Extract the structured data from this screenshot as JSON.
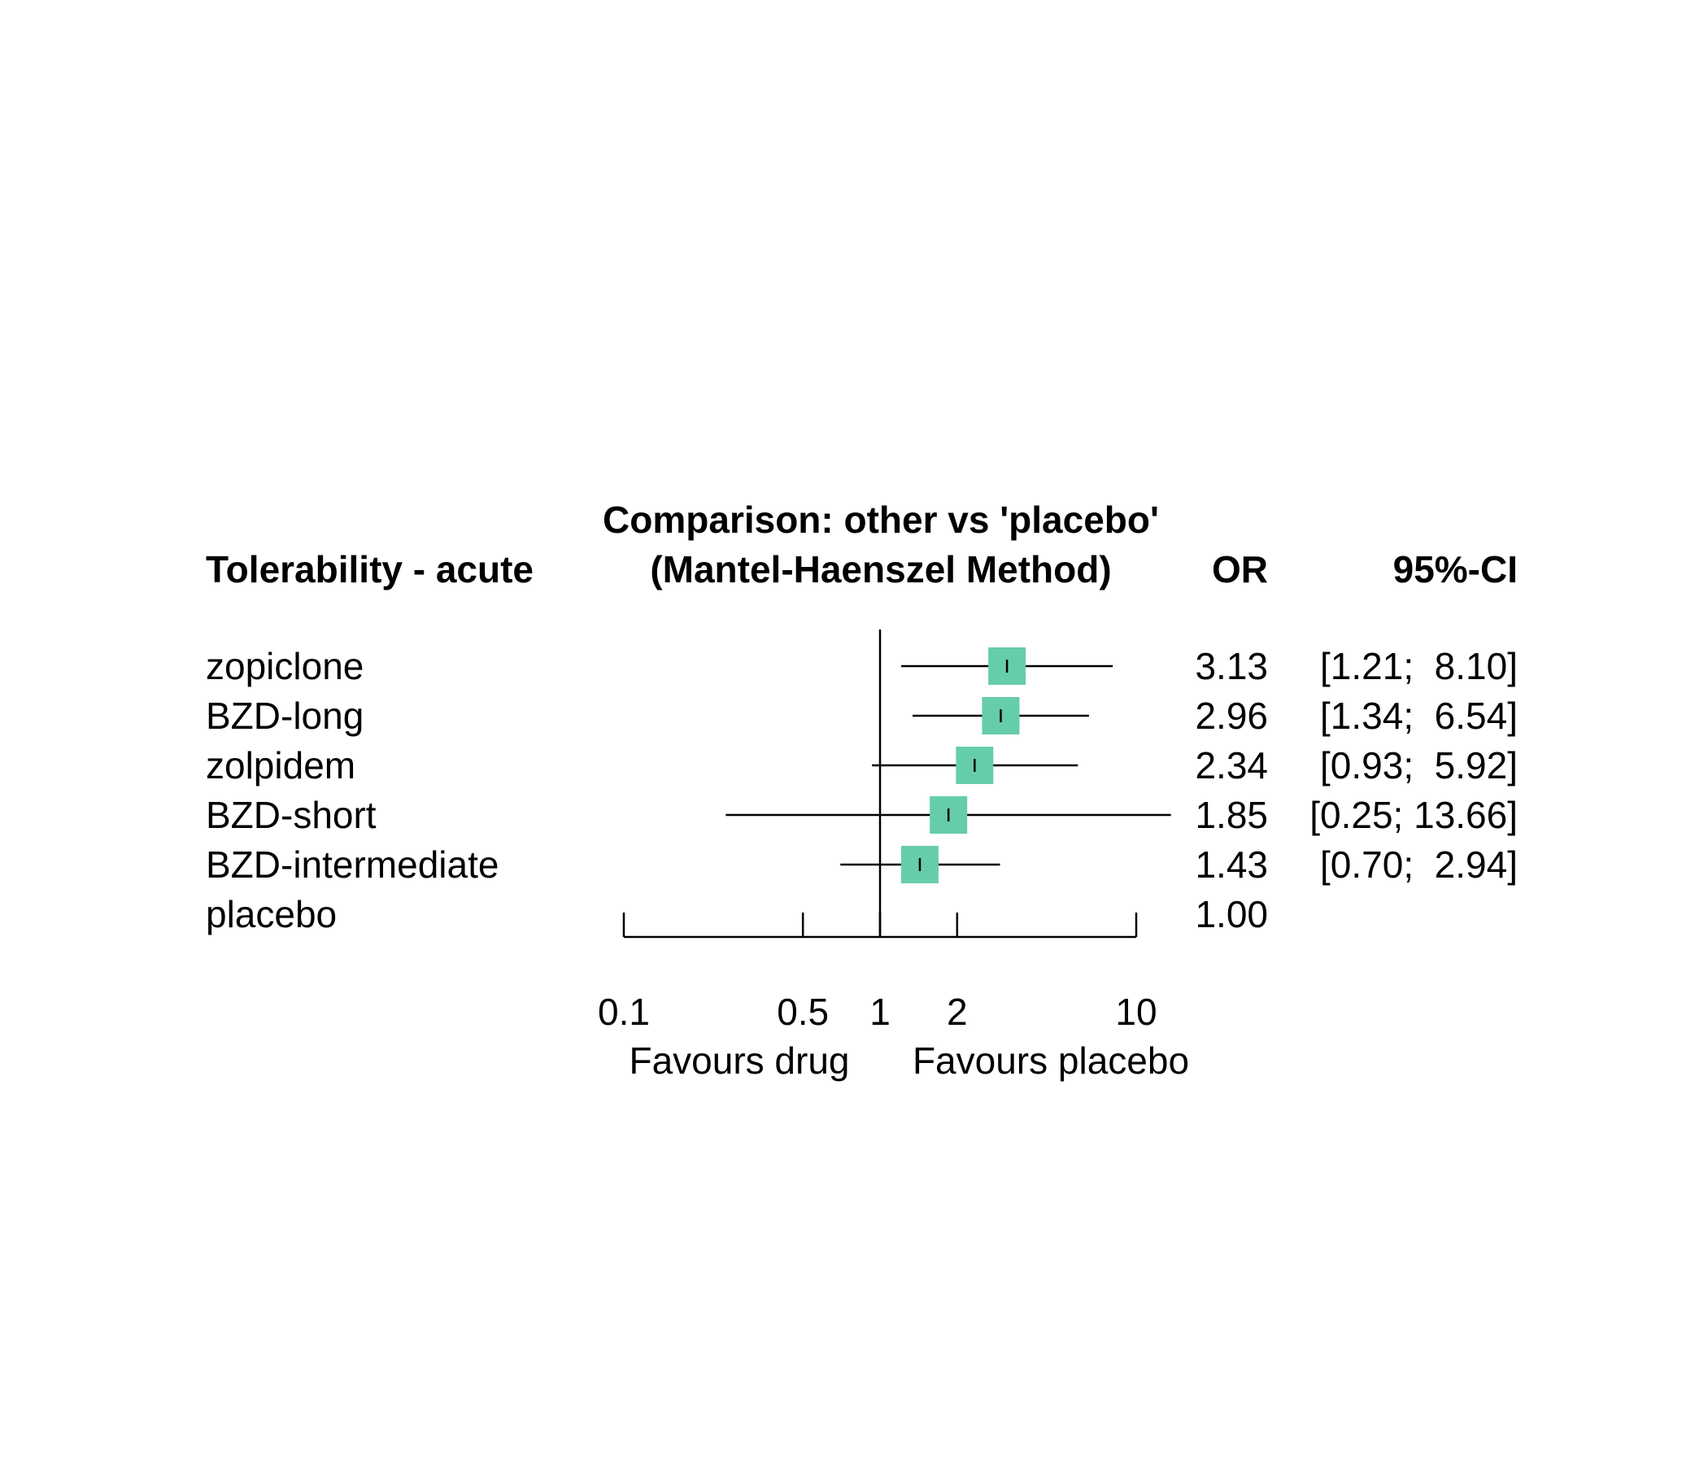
{
  "chart_data": {
    "type": "forest",
    "title": "Comparison: other vs 'placebo'",
    "subtitle": "(Mantel-Haenszel Method)",
    "left_header": "Tolerability - acute",
    "estimate_header": "OR",
    "ci_header": "95%-CI",
    "x_scale": "log",
    "xlim": [
      0.1,
      10
    ],
    "reference_line": 1,
    "x_ticks": [
      0.1,
      0.5,
      1,
      2,
      10
    ],
    "x_tick_labels": [
      "0.1",
      "0.5",
      "1",
      "2",
      "10"
    ],
    "favours_left": "Favours drug",
    "favours_right": "Favours placebo",
    "marker_color": "#66CDAA",
    "rows": [
      {
        "label": "zopiclone",
        "or": 3.13,
        "lower": 1.21,
        "upper": 8.1,
        "or_text": "3.13",
        "ci_text": "[1.21;  8.10]"
      },
      {
        "label": "BZD-long",
        "or": 2.96,
        "lower": 1.34,
        "upper": 6.54,
        "or_text": "2.96",
        "ci_text": "[1.34;  6.54]"
      },
      {
        "label": "zolpidem",
        "or": 2.34,
        "lower": 0.93,
        "upper": 5.92,
        "or_text": "2.34",
        "ci_text": "[0.93;  5.92]"
      },
      {
        "label": "BZD-short",
        "or": 1.85,
        "lower": 0.25,
        "upper": 13.66,
        "or_text": "1.85",
        "ci_text": "[0.25; 13.66]"
      },
      {
        "label": "BZD-intermediate",
        "or": 1.43,
        "lower": 0.7,
        "upper": 2.94,
        "or_text": "1.43",
        "ci_text": "[0.70;  2.94]"
      },
      {
        "label": "placebo",
        "or": 1.0,
        "lower": null,
        "upper": null,
        "or_text": "1.00",
        "ci_text": ""
      }
    ]
  }
}
